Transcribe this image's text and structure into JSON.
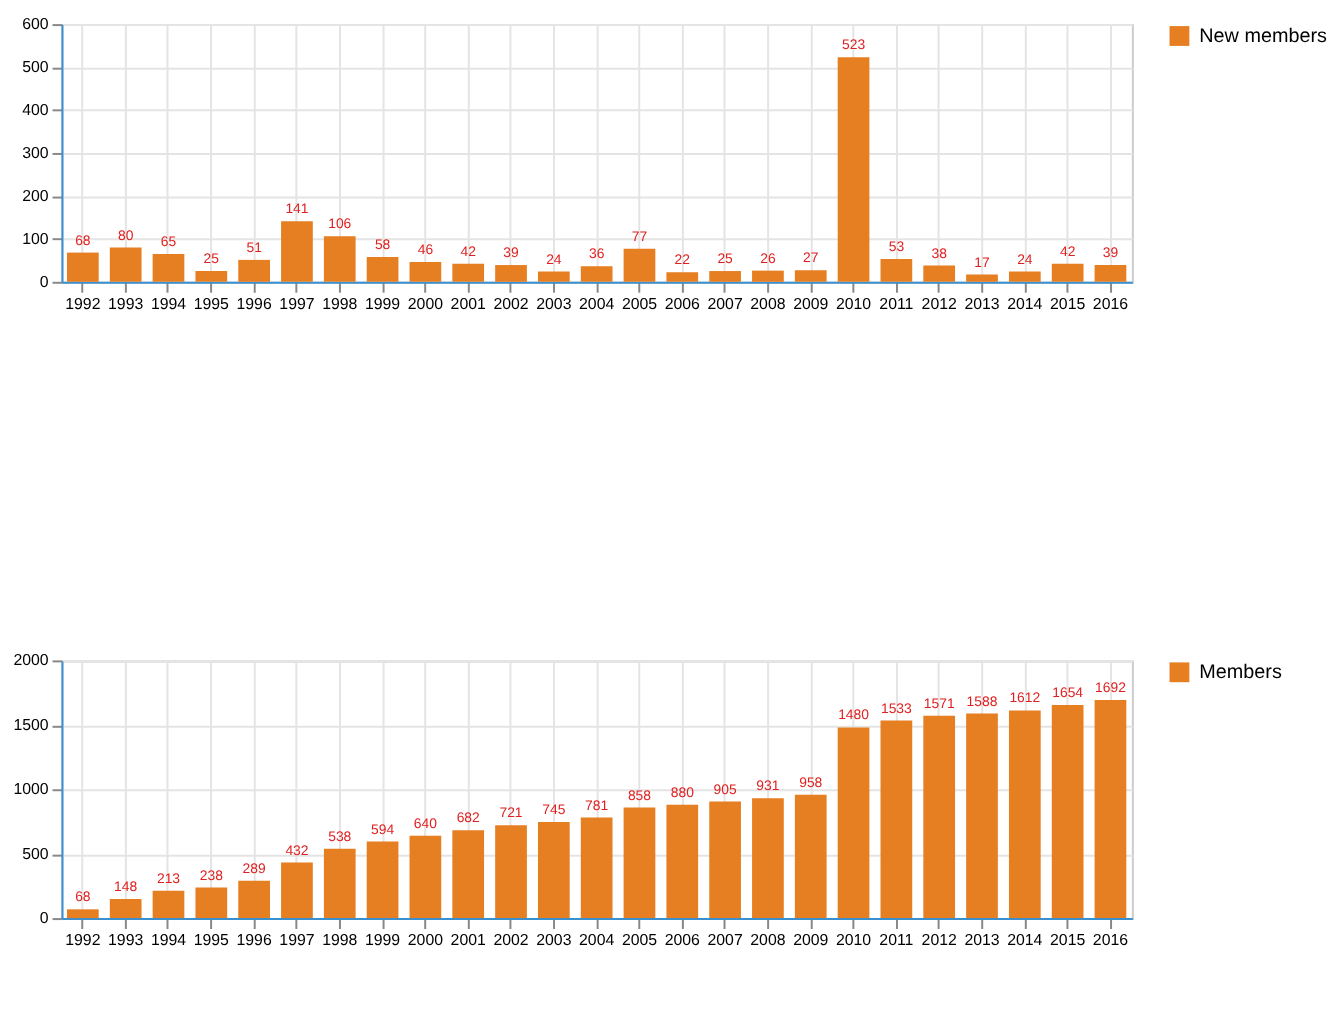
{
  "chart_data": [
    {
      "type": "bar",
      "categories": [
        "1992",
        "1993",
        "1994",
        "1995",
        "1996",
        "1997",
        "1998",
        "1999",
        "2000",
        "2001",
        "2002",
        "2003",
        "2004",
        "2005",
        "2006",
        "2007",
        "2008",
        "2009",
        "2010",
        "2011",
        "2012",
        "2013",
        "2014",
        "2015",
        "2016"
      ],
      "series": [
        {
          "name": "New members",
          "color": "#e67e22",
          "values": [
            68,
            80,
            65,
            25,
            51,
            141,
            106,
            58,
            46,
            42,
            39,
            24,
            36,
            77,
            22,
            25,
            26,
            27,
            523,
            53,
            38,
            17,
            24,
            42,
            39
          ]
        }
      ],
      "ylim": [
        0,
        600
      ],
      "yticks": [
        0,
        100,
        200,
        300,
        400,
        500,
        600
      ],
      "grid": true,
      "legend": "right",
      "data_labels": true
    },
    {
      "type": "bar",
      "categories": [
        "1992",
        "1993",
        "1994",
        "1995",
        "1996",
        "1997",
        "1998",
        "1999",
        "2000",
        "2001",
        "2002",
        "2003",
        "2004",
        "2005",
        "2006",
        "2007",
        "2008",
        "2009",
        "2010",
        "2011",
        "2012",
        "2013",
        "2014",
        "2015",
        "2016"
      ],
      "series": [
        {
          "name": "Members",
          "color": "#e67e22",
          "values": [
            68,
            148,
            213,
            238,
            289,
            432,
            538,
            594,
            640,
            682,
            721,
            745,
            781,
            858,
            880,
            905,
            931,
            958,
            1480,
            1533,
            1571,
            1588,
            1612,
            1654,
            1692
          ]
        }
      ],
      "ylim": [
        0,
        2000
      ],
      "yticks": [
        0,
        500,
        1000,
        1500,
        2000
      ],
      "grid": true,
      "legend": "right",
      "data_labels": true
    }
  ]
}
